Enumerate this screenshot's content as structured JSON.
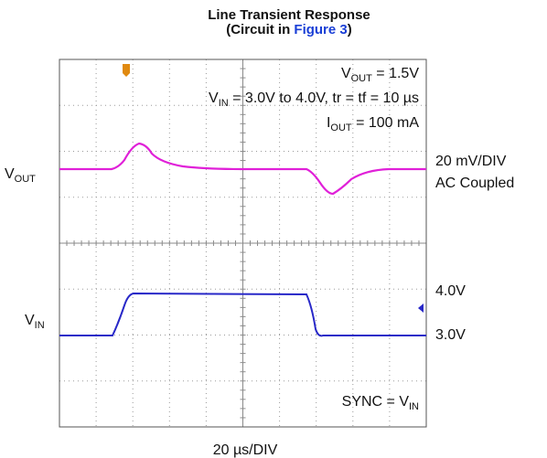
{
  "title": "Line Transient Response",
  "subtitle": {
    "prefix": "(Circuit in ",
    "link": "Figure 3",
    "suffix": ")"
  },
  "annotations": [
    {
      "base": "V",
      "sub": "OUT",
      "rest": " = 1.5V"
    },
    {
      "base": "V",
      "sub": "IN",
      "rest": " = 3.0V to 4.0V, tr = tf = 10 µs"
    },
    {
      "base": "I",
      "sub": "OUT",
      "rest": " = 100 mA"
    }
  ],
  "left_labels": [
    {
      "base": "V",
      "sub": "OUT"
    },
    {
      "base": "V",
      "sub": "IN"
    }
  ],
  "right_labels": [
    "20 mV/DIV",
    "AC Coupled",
    "4.0V",
    "3.0V"
  ],
  "sync": {
    "base": "SYNC = V",
    "sub": "IN"
  },
  "time_scale": "20 µs/DIV"
}
